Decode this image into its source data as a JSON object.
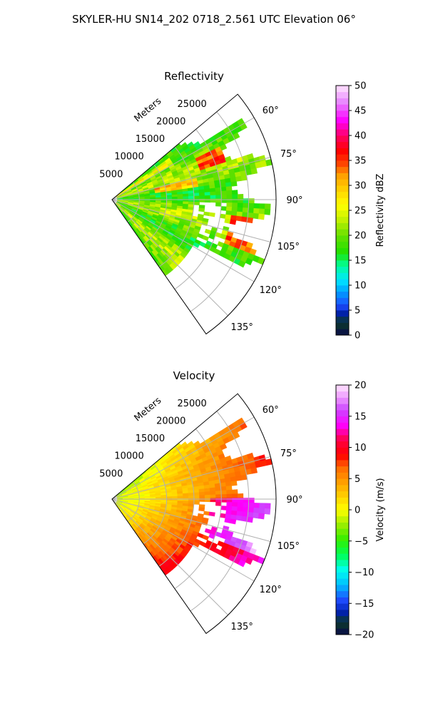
{
  "figure": {
    "suptitle": "SKYLER-HU  SN14_202  0718_2.561 UTC Elevation 06°"
  },
  "chart_data": [
    {
      "type": "heatmap",
      "projection": "polar-sector",
      "title": "Reflectivity",
      "range_axis_label": "Meters",
      "range_ticks": [
        5000,
        10000,
        15000,
        20000,
        25000
      ],
      "range_tick_labels": [
        "5000",
        "10000",
        "15000",
        "20000",
        "25000"
      ],
      "range_max": 30000,
      "azimuth_range_deg": [
        50,
        145
      ],
      "azimuth_ticks": [
        60,
        75,
        90,
        105,
        120,
        135
      ],
      "azimuth_tick_labels": [
        "60°",
        "75°",
        "90°",
        "105°",
        "120°",
        "135°"
      ],
      "grid": true,
      "colorbar": {
        "label": "Reflectivity dBZ",
        "range": [
          0,
          50
        ],
        "ticks": [
          0,
          5,
          10,
          15,
          20,
          25,
          30,
          35,
          40,
          45,
          50
        ],
        "tick_labels": [
          "0",
          "5",
          "10",
          "15",
          "20",
          "25",
          "30",
          "35",
          "40",
          "45",
          "50"
        ],
        "stops": [
          [
            0.0,
            "#0a0a4a"
          ],
          [
            0.05,
            "#0b3a2a"
          ],
          [
            0.09,
            "#0020b0"
          ],
          [
            0.12,
            "#1f4cff"
          ],
          [
            0.17,
            "#0099ff"
          ],
          [
            0.22,
            "#00e5ff"
          ],
          [
            0.28,
            "#00ff99"
          ],
          [
            0.33,
            "#1fe000"
          ],
          [
            0.4,
            "#66e000"
          ],
          [
            0.46,
            "#bff000"
          ],
          [
            0.52,
            "#ffff00"
          ],
          [
            0.58,
            "#ffd400"
          ],
          [
            0.64,
            "#ffa000"
          ],
          [
            0.69,
            "#ff4000"
          ],
          [
            0.74,
            "#ff0000"
          ],
          [
            0.8,
            "#ff0066"
          ],
          [
            0.86,
            "#ff00ff"
          ],
          [
            0.93,
            "#e680ff"
          ],
          [
            1.0,
            "#ffe6ff"
          ]
        ]
      }
    },
    {
      "type": "heatmap",
      "projection": "polar-sector",
      "title": "Velocity",
      "range_axis_label": "Meters",
      "range_ticks": [
        5000,
        10000,
        15000,
        20000,
        25000
      ],
      "range_tick_labels": [
        "5000",
        "10000",
        "15000",
        "20000",
        "25000"
      ],
      "range_max": 30000,
      "azimuth_range_deg": [
        50,
        145
      ],
      "azimuth_ticks": [
        60,
        75,
        90,
        105,
        120,
        135
      ],
      "azimuth_tick_labels": [
        "60°",
        "75°",
        "90°",
        "105°",
        "120°",
        "135°"
      ],
      "grid": true,
      "colorbar": {
        "label": "Velocity (m/s)",
        "range": [
          -20,
          20
        ],
        "ticks": [
          -20,
          -15,
          -10,
          -5,
          0,
          5,
          10,
          15,
          20
        ],
        "tick_labels": [
          "−20",
          "−15",
          "−10",
          "−5",
          "0",
          "5",
          "10",
          "15",
          "20"
        ],
        "stops": [
          [
            0.0,
            "#0a0a4a"
          ],
          [
            0.05,
            "#0b3a2a"
          ],
          [
            0.09,
            "#0020b0"
          ],
          [
            0.14,
            "#1f4cff"
          ],
          [
            0.2,
            "#00bfff"
          ],
          [
            0.26,
            "#00ffee"
          ],
          [
            0.32,
            "#00ff55"
          ],
          [
            0.38,
            "#33ee00"
          ],
          [
            0.44,
            "#99ee00"
          ],
          [
            0.5,
            "#ffff00"
          ],
          [
            0.55,
            "#ffd400"
          ],
          [
            0.61,
            "#ffa000"
          ],
          [
            0.67,
            "#ff6a00"
          ],
          [
            0.72,
            "#ff0000"
          ],
          [
            0.78,
            "#ff0044"
          ],
          [
            0.84,
            "#ff00ff"
          ],
          [
            0.9,
            "#cc44ff"
          ],
          [
            0.95,
            "#ee99ff"
          ],
          [
            1.0,
            "#ffe6ff"
          ]
        ]
      }
    }
  ]
}
